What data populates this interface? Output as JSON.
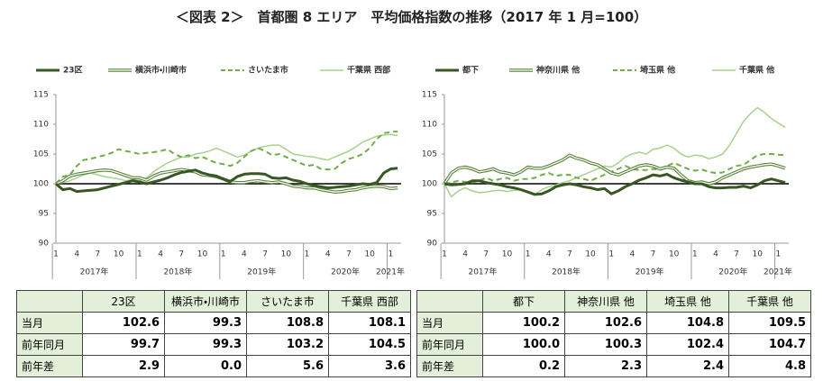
{
  "title": "＜図表 2＞　首都圏 8 エリア　平均価格指数の推移（2017 年 1 月=100）",
  "chart_data": [
    {
      "type": "line",
      "categories": [
        "1",
        null,
        null,
        "4",
        null,
        null,
        "7",
        null,
        null,
        "10",
        null,
        null,
        "1",
        null,
        null,
        "4",
        null,
        null,
        "7",
        null,
        null,
        "10",
        null,
        null,
        "1",
        null,
        null,
        "4",
        null,
        null,
        "7",
        null,
        null,
        "10",
        null,
        null,
        "1",
        null,
        null,
        "4",
        null,
        null,
        "7",
        null,
        null,
        "10",
        null,
        null,
        "1",
        null
      ],
      "x_groups": [
        "2017年",
        "2018年",
        "2019年",
        "2020年",
        "2021年"
      ],
      "ylim": [
        90,
        115
      ],
      "yticks": [
        90,
        95,
        100,
        105,
        110,
        115
      ],
      "reference_line": 100,
      "series": [
        {
          "name": "23区",
          "color": "#385723",
          "style": "solid",
          "values": [
            100,
            99.0,
            99.2,
            98.7,
            98.8,
            98.9,
            99.0,
            99.3,
            99.6,
            99.9,
            100.2,
            100.5,
            100.3,
            100.0,
            100.3,
            100.6,
            101.0,
            101.5,
            101.9,
            102.1,
            102.3,
            101.8,
            101.5,
            101.3,
            100.8,
            100.4,
            101.2,
            101.6,
            101.7,
            101.7,
            101.6,
            101.0,
            100.9,
            101.0,
            100.6,
            100.4,
            100.0,
            99.7,
            99.5,
            99.3,
            99.4,
            99.5,
            99.6,
            99.8,
            100.0,
            99.9,
            100.2,
            101.8,
            102.5,
            102.6
          ]
        },
        {
          "name": "横浜市・川崎市",
          "color": "#548235",
          "style": "double",
          "values": [
            100,
            100.5,
            101.3,
            101.6,
            101.8,
            102.0,
            102.2,
            102.3,
            102.2,
            101.8,
            101.4,
            101.0,
            101.0,
            100.6,
            101.3,
            101.8,
            102.0,
            102.2,
            102.4,
            102.2,
            102.0,
            101.5,
            101.4,
            101.2,
            100.8,
            100.3,
            100.2,
            100.2,
            100.4,
            100.5,
            100.3,
            100.2,
            100.3,
            100.0,
            99.6,
            99.5,
            99.3,
            99.3,
            99.0,
            98.8,
            98.6,
            98.7,
            98.9,
            99.0,
            99.3,
            99.5,
            99.6,
            99.5,
            99.2,
            99.3
          ]
        },
        {
          "name": "さいたま市",
          "color": "#70ad47",
          "style": "dashed",
          "values": [
            100,
            101.2,
            101.5,
            103.0,
            104.0,
            104.2,
            104.5,
            104.8,
            105.2,
            105.8,
            105.5,
            105.3,
            105.0,
            105.2,
            105.3,
            105.5,
            105.8,
            105.0,
            104.5,
            104.8,
            104.3,
            104.5,
            104.0,
            103.5,
            103.3,
            103.0,
            103.5,
            104.5,
            105.5,
            106.0,
            105.5,
            104.8,
            105.0,
            104.5,
            104.0,
            103.5,
            103.0,
            103.2,
            102.5,
            102.4,
            102.5,
            103.5,
            104.2,
            104.5,
            105.0,
            106.0,
            107.5,
            108.5,
            108.7,
            108.8
          ]
        },
        {
          "name": "千葉県 西部",
          "color": "#a9d18e",
          "style": "light",
          "values": [
            100,
            100.2,
            100.5,
            101.0,
            101.5,
            101.8,
            101.5,
            101.2,
            101.0,
            100.8,
            100.5,
            100.7,
            100.5,
            101.0,
            102.0,
            102.8,
            103.5,
            104.0,
            104.5,
            104.5,
            105.0,
            105.2,
            105.5,
            106.0,
            105.5,
            105.0,
            104.5,
            104.8,
            105.5,
            106.0,
            106.3,
            106.5,
            106.5,
            105.8,
            105.0,
            104.8,
            104.6,
            104.5,
            104.2,
            104.0,
            104.5,
            105.0,
            105.5,
            106.2,
            107.0,
            107.5,
            108.0,
            108.2,
            108.3,
            108.1
          ]
        }
      ]
    },
    {
      "type": "line",
      "categories": [
        "1",
        null,
        null,
        "4",
        null,
        null,
        "7",
        null,
        null,
        "10",
        null,
        null,
        "1",
        null,
        null,
        "4",
        null,
        null,
        "7",
        null,
        null,
        "10",
        null,
        null,
        "1",
        null,
        null,
        "4",
        null,
        null,
        "7",
        null,
        null,
        "10",
        null,
        null,
        "1",
        null,
        null,
        "4",
        null,
        null,
        "7",
        null,
        null,
        "10",
        null,
        null,
        "1",
        null
      ],
      "x_groups": [
        "2017年",
        "2018年",
        "2019年",
        "2020年",
        "2021年"
      ],
      "ylim": [
        90,
        115
      ],
      "yticks": [
        90,
        95,
        100,
        105,
        110,
        115
      ],
      "reference_line": 100,
      "series": [
        {
          "name": "都下",
          "color": "#385723",
          "style": "solid",
          "values": [
            100,
            99.8,
            99.9,
            100.0,
            100.5,
            100.5,
            100.2,
            100.0,
            99.8,
            99.5,
            99.3,
            99.0,
            98.6,
            98.2,
            98.3,
            98.8,
            99.5,
            99.8,
            100.0,
            99.8,
            99.5,
            99.3,
            99.0,
            99.2,
            98.3,
            98.8,
            99.5,
            100.0,
            100.6,
            101.0,
            101.5,
            101.3,
            101.6,
            101.0,
            100.6,
            100.3,
            100.0,
            100.0,
            99.5,
            99.3,
            99.3,
            99.4,
            99.4,
            99.6,
            99.3,
            99.8,
            100.5,
            100.8,
            100.5,
            100.2
          ]
        },
        {
          "name": "神奈川県 他",
          "color": "#548235",
          "style": "double",
          "values": [
            100,
            101.8,
            102.6,
            102.8,
            102.5,
            102.0,
            102.2,
            102.5,
            102.0,
            101.8,
            101.5,
            102.0,
            102.8,
            102.6,
            102.6,
            103.0,
            103.5,
            104.0,
            104.8,
            104.3,
            104.0,
            103.5,
            103.2,
            102.5,
            101.8,
            101.5,
            102.0,
            102.5,
            103.0,
            103.2,
            103.0,
            102.5,
            102.8,
            102.6,
            101.5,
            100.5,
            100.2,
            100.3,
            100.0,
            100.3,
            101.0,
            101.5,
            102.0,
            102.5,
            102.8,
            103.0,
            103.2,
            103.3,
            103.0,
            102.6
          ]
        },
        {
          "name": "埼玉県 他",
          "color": "#70ad47",
          "style": "dashed",
          "values": [
            100,
            100.2,
            100.5,
            100.3,
            100.2,
            100.5,
            101.0,
            100.5,
            100.8,
            101.0,
            100.5,
            100.8,
            100.8,
            101.0,
            101.5,
            101.8,
            101.3,
            101.5,
            101.5,
            101.0,
            100.8,
            100.5,
            101.0,
            101.5,
            102.0,
            102.5,
            103.0,
            102.5,
            102.3,
            102.3,
            102.5,
            102.3,
            103.0,
            103.5,
            103.0,
            102.5,
            102.2,
            102.4,
            102.0,
            101.8,
            101.9,
            102.5,
            103.0,
            103.2,
            104.0,
            104.8,
            105.0,
            105.0,
            104.9,
            104.8
          ]
        },
        {
          "name": "千葉県 他",
          "color": "#a9d18e",
          "style": "light",
          "values": [
            100,
            97.8,
            98.8,
            99.3,
            98.8,
            98.5,
            98.6,
            98.8,
            98.9,
            98.7,
            98.9,
            99.0,
            98.5,
            98.2,
            99.0,
            99.5,
            99.8,
            100.2,
            100.5,
            101.0,
            101.5,
            102.0,
            102.5,
            103.0,
            102.8,
            103.5,
            104.5,
            105.0,
            105.3,
            105.0,
            105.8,
            106.0,
            106.5,
            106.0,
            105.0,
            104.5,
            104.8,
            104.7,
            104.2,
            104.5,
            105.0,
            106.5,
            108.5,
            110.5,
            111.8,
            112.8,
            112.0,
            111.0,
            110.2,
            109.5
          ]
        }
      ]
    }
  ],
  "tables": [
    {
      "columns": [
        "23区",
        "横浜市・川崎市",
        "さいたま市",
        "千葉県 西部"
      ],
      "rows": [
        {
          "label": "当月",
          "cells": [
            "102.6",
            "99.3",
            "108.8",
            "108.1"
          ]
        },
        {
          "label": "前年同月",
          "cells": [
            "99.7",
            "99.3",
            "103.2",
            "104.5"
          ]
        },
        {
          "label": "前年差",
          "cells": [
            "2.9",
            "0.0",
            "5.6",
            "3.6"
          ]
        }
      ]
    },
    {
      "columns": [
        "都下",
        "神奈川県 他",
        "埼玉県 他",
        "千葉県 他"
      ],
      "rows": [
        {
          "label": "当月",
          "cells": [
            "100.2",
            "102.6",
            "104.8",
            "109.5"
          ]
        },
        {
          "label": "前年同月",
          "cells": [
            "100.0",
            "100.3",
            "102.4",
            "104.7"
          ]
        },
        {
          "label": "前年差",
          "cells": [
            "0.2",
            "2.3",
            "2.4",
            "4.8"
          ]
        }
      ]
    }
  ]
}
